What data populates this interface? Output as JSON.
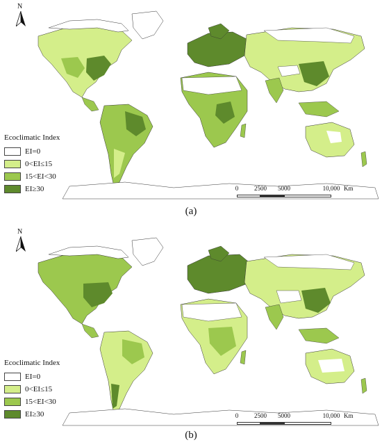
{
  "panels": [
    {
      "id": "a",
      "caption": "(a)",
      "legend": {
        "title": "Ecoclimatic Index",
        "items": [
          {
            "label": "EI=0",
            "color": "#ffffff"
          },
          {
            "label": "0<EI≤15",
            "color": "#d4ee8a"
          },
          {
            "label": "15<EI<30",
            "color": "#9cc84e"
          },
          {
            "label": "EI≥30",
            "color": "#5e8a2c"
          }
        ]
      },
      "scale_bar": {
        "ticks": [
          "0",
          "2500",
          "5000",
          "10,000"
        ],
        "unit": "Km"
      },
      "north_label": "N"
    },
    {
      "id": "b",
      "caption": "(b)",
      "legend": {
        "title": "Ecoclimatic Index",
        "items": [
          {
            "label": "EI=0",
            "color": "#ffffff"
          },
          {
            "label": "0<EI≤15",
            "color": "#d4ee8a"
          },
          {
            "label": "15<EI<30",
            "color": "#9cc84e"
          },
          {
            "label": "EI≥30",
            "color": "#5e8a2c"
          }
        ]
      },
      "scale_bar": {
        "ticks": [
          "0",
          "2500",
          "5000",
          "10,000"
        ],
        "unit": "Km"
      },
      "north_label": "N"
    }
  ]
}
